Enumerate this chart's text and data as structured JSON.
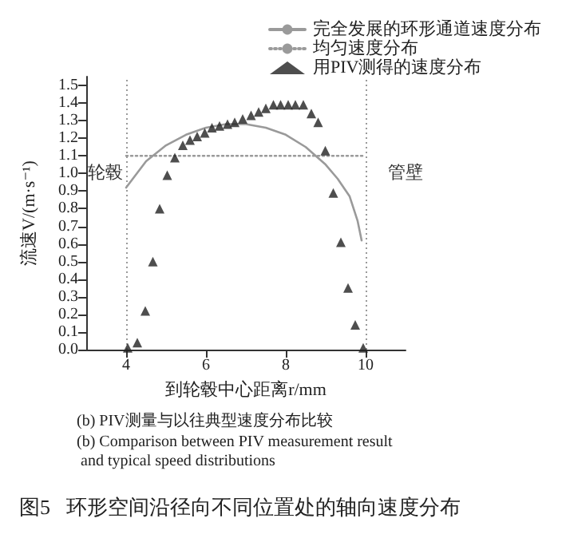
{
  "chart_data": {
    "type": "line",
    "xlabel": "到轮毂中心距离r/mm",
    "ylabel": "流速V/(m·s⁻¹)",
    "xlim": [
      3,
      11
    ],
    "xticks": [
      4,
      6,
      8,
      10
    ],
    "ylim": [
      0,
      1.55
    ],
    "yticks": [
      {
        "value": 0,
        "label": "0.0"
      },
      {
        "value": 0.1,
        "label": "0.1"
      },
      {
        "value": 0.2,
        "label": "0.2"
      },
      {
        "value": 0.3,
        "label": "0.3"
      },
      {
        "value": 0.4,
        "label": "0.4"
      },
      {
        "value": 0.5,
        "label": "0.5"
      },
      {
        "value": 0.6,
        "label": "0.6"
      },
      {
        "value": 0.7,
        "label": "0.7"
      },
      {
        "value": 0.8,
        "label": "0.8"
      },
      {
        "value": 0.9,
        "label": "0.9"
      },
      {
        "value": 1.0,
        "label": "1.0"
      },
      {
        "value": 1.1,
        "label": "1.1"
      },
      {
        "value": 1.2,
        "label": "1.2"
      },
      {
        "value": 1.3,
        "label": "1.3"
      },
      {
        "value": 1.4,
        "label": "1.4"
      },
      {
        "value": 1.5,
        "label": "1.5"
      }
    ],
    "grid": false,
    "legend": "top right",
    "series": [
      {
        "name": "完全发展的环形通道速度分布",
        "line_style": "solid",
        "color": "#9a9a9a",
        "x": [
          4.0,
          4.5,
          5.0,
          5.5,
          6.0,
          6.5,
          7.0,
          7.5,
          8.0,
          8.5,
          9.0,
          9.3,
          9.6,
          9.8,
          9.9
        ],
        "values": [
          0.92,
          1.07,
          1.16,
          1.22,
          1.26,
          1.28,
          1.28,
          1.26,
          1.22,
          1.15,
          1.05,
          0.97,
          0.87,
          0.73,
          0.62
        ]
      },
      {
        "name": "均匀速度分布",
        "line_style": "dotted",
        "color": "#9a9a9a",
        "x": [
          4,
          10
        ],
        "values": [
          1.1,
          1.1
        ]
      },
      {
        "name": "用PIV测得的速度分布",
        "type": "scatter",
        "marker": "triangle",
        "color": "#222222",
        "x": [
          4.04,
          4.28,
          4.48,
          4.67,
          4.84,
          5.03,
          5.22,
          5.42,
          5.6,
          5.78,
          5.97,
          6.15,
          6.34,
          6.54,
          6.72,
          6.92,
          7.13,
          7.32,
          7.5,
          7.69,
          7.87,
          8.06,
          8.24,
          8.44,
          8.64,
          8.81,
          8.99,
          9.19,
          9.38,
          9.56,
          9.74,
          9.94
        ],
        "values": [
          0.01,
          0.04,
          0.22,
          0.5,
          0.8,
          0.99,
          1.09,
          1.16,
          1.19,
          1.21,
          1.23,
          1.26,
          1.27,
          1.28,
          1.29,
          1.31,
          1.33,
          1.35,
          1.37,
          1.39,
          1.39,
          1.39,
          1.39,
          1.39,
          1.34,
          1.29,
          1.13,
          0.89,
          0.61,
          0.35,
          0.14,
          0.01
        ]
      }
    ],
    "ref_lines": [
      {
        "axis": "x",
        "value": 4,
        "label": "轮毂",
        "color": "#9a9a9a",
        "line_style": "dotted"
      },
      {
        "axis": "x",
        "value": 10,
        "label": "管壁",
        "color": "#9a9a9a",
        "line_style": "dotted"
      }
    ],
    "annotations": [
      "(b) PIV测量与以往典型速度分布比较",
      "(b) Comparison between PIV measurement result and typical speed distributions",
      "图5   环形空间沿径向不同位置处的轴向速度分布"
    ]
  }
}
